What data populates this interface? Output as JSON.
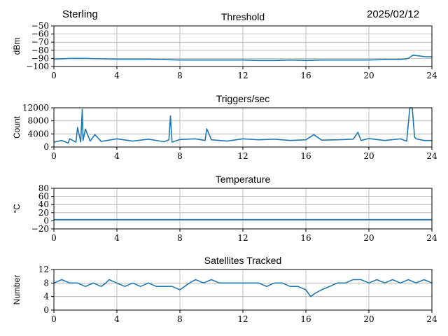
{
  "header": {
    "station": "Sterling",
    "date": "2025/02/12"
  },
  "colors": {
    "line": "#1f77b4",
    "grid": "#b0b0b0",
    "axis": "#000000"
  },
  "chart_data": [
    {
      "type": "line",
      "title": "Threshold",
      "xlabel": "",
      "ylabel": "dBm",
      "xlim": [
        0,
        24
      ],
      "ylim": [
        -100,
        -50
      ],
      "xticks": [
        0,
        4,
        8,
        12,
        16,
        20,
        24
      ],
      "yticks": [
        -100,
        -90,
        -80,
        -70,
        -60,
        -50
      ],
      "grid": true,
      "series": [
        {
          "x": [
            0,
            1,
            2,
            3,
            4,
            5,
            6,
            7,
            8,
            9,
            10,
            11,
            12,
            13,
            14,
            15,
            16,
            17,
            18,
            19,
            20,
            21,
            22,
            22.5,
            22.8,
            23.2,
            23.6,
            24
          ],
          "y": [
            -91,
            -90,
            -90,
            -90.5,
            -91,
            -91,
            -91,
            -91.5,
            -92,
            -92,
            -92,
            -92,
            -92,
            -92.5,
            -92.5,
            -92,
            -92.5,
            -92,
            -92,
            -92,
            -92,
            -91.5,
            -91.5,
            -90,
            -86,
            -87,
            -88,
            -88
          ]
        }
      ]
    },
    {
      "type": "line",
      "title": "Triggers/sec",
      "xlabel": "",
      "ylabel": "Count",
      "xlim": [
        0,
        24
      ],
      "ylim": [
        0,
        12000
      ],
      "xticks": [
        0,
        4,
        8,
        12,
        16,
        20,
        24
      ],
      "yticks": [
        0,
        4000,
        8000,
        12000
      ],
      "grid": true,
      "series": [
        {
          "x": [
            0,
            0.5,
            0.9,
            1.0,
            1.4,
            1.5,
            1.7,
            1.8,
            1.85,
            2.0,
            2.3,
            2.6,
            3.0,
            4.0,
            5.0,
            6.0,
            7.0,
            7.3,
            7.4,
            7.5,
            8.0,
            9.0,
            9.6,
            9.7,
            10.0,
            11.0,
            12.0,
            13.0,
            14.0,
            15.0,
            16.0,
            16.5,
            17.0,
            18.0,
            19.0,
            19.3,
            19.5,
            20.0,
            21.0,
            22.0,
            22.4,
            22.6,
            22.75,
            22.9,
            23.0,
            23.5,
            24
          ],
          "y": [
            1500,
            2000,
            1200,
            2500,
            1500,
            6000,
            1500,
            11500,
            2000,
            5500,
            1800,
            3800,
            1700,
            2500,
            1800,
            2400,
            1600,
            2200,
            9500,
            1500,
            2300,
            2500,
            2000,
            5600,
            2200,
            1800,
            2500,
            2200,
            2400,
            2000,
            2200,
            3800,
            2100,
            2200,
            2400,
            4500,
            2000,
            2600,
            2000,
            2500,
            1800,
            12000,
            12000,
            3000,
            2500,
            2000,
            2000
          ]
        }
      ]
    },
    {
      "type": "line",
      "title": "Temperature",
      "xlabel": "",
      "ylabel": "°C",
      "xlim": [
        0,
        24
      ],
      "ylim": [
        -20,
        80
      ],
      "xticks": [
        0,
        4,
        8,
        12,
        16,
        20,
        24
      ],
      "yticks": [
        -20,
        0,
        20,
        40,
        60,
        80
      ],
      "grid": true,
      "series": [
        {
          "x": [
            0,
            24
          ],
          "y": [
            3,
            3
          ]
        }
      ]
    },
    {
      "type": "line",
      "title": "Satellites Tracked",
      "xlabel": "",
      "ylabel": "Number",
      "xlim": [
        0,
        24
      ],
      "ylim": [
        0,
        12
      ],
      "xticks": [
        0,
        4,
        8,
        12,
        16,
        20,
        24
      ],
      "yticks": [
        0,
        4,
        8,
        12
      ],
      "grid": true,
      "series": [
        {
          "x": [
            0,
            0.5,
            1.0,
            1.5,
            2.0,
            2.5,
            3.0,
            3.3,
            3.5,
            4.0,
            4.5,
            5.0,
            5.5,
            6.0,
            6.5,
            7.0,
            7.5,
            8.0,
            8.3,
            8.6,
            9.0,
            9.5,
            10.0,
            10.5,
            11.0,
            11.5,
            12.0,
            12.5,
            13.0,
            13.5,
            14.0,
            14.5,
            15.0,
            15.5,
            16.0,
            16.3,
            16.6,
            17.0,
            17.5,
            18.0,
            18.5,
            19.0,
            19.5,
            20.0,
            20.5,
            21.0,
            21.5,
            22.0,
            22.5,
            23.0,
            23.5,
            24.0
          ],
          "y": [
            8,
            9,
            8,
            8,
            7,
            8,
            7,
            8,
            9,
            8,
            7,
            8,
            7,
            8,
            7,
            7,
            7,
            6,
            7,
            8,
            9,
            8,
            9,
            8,
            8,
            8,
            8,
            8,
            8,
            7,
            8,
            8,
            7,
            7,
            6,
            4,
            5,
            6,
            7,
            8,
            8,
            9,
            9,
            8,
            9,
            8,
            9,
            8,
            9,
            8,
            9,
            8
          ]
        }
      ]
    }
  ]
}
